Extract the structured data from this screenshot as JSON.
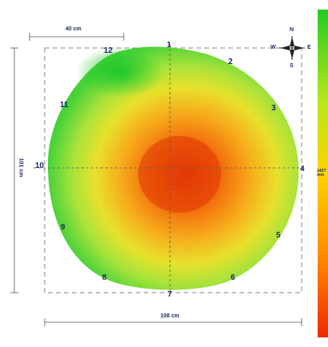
{
  "map": {
    "positions": [
      "1",
      "2",
      "3",
      "4",
      "5",
      "6",
      "7",
      "8",
      "9",
      "10",
      "11",
      "12"
    ],
    "dimension_top": "40 cm",
    "dimension_left": "101 cm",
    "dimension_bottom": "108 cm"
  },
  "compass": {
    "n": "N",
    "e": "E",
    "s": "S",
    "w": "W",
    "icon": "compass-rose-icon"
  },
  "legend": {
    "value_line1": "142?",
    "value_line2": "mm",
    "colors": [
      "#22cc22",
      "#b8e61c",
      "#ffd200",
      "#ff8c00",
      "#ee2a00"
    ]
  },
  "colors": {
    "outline": "#3a4a8a",
    "low": "#22cc22",
    "high": "#ee2a00"
  }
}
